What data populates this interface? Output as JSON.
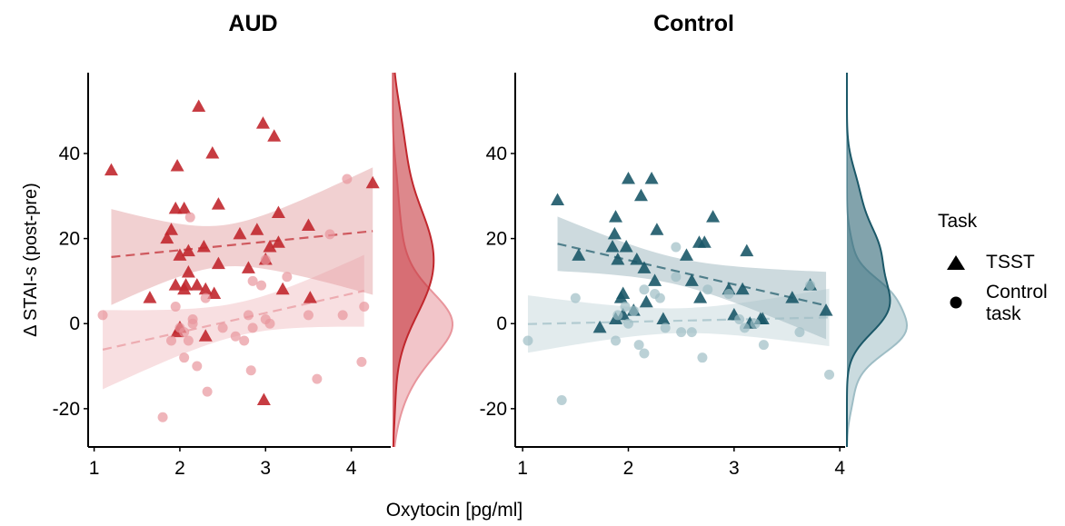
{
  "shared": {
    "xlabel": "Oxytocin [pg/ml]",
    "ylabel": "Δ STAI-s (post-pre)",
    "legend_title": "Task"
  },
  "chart_data": [
    {
      "type": "scatter",
      "title": "AUD",
      "xlim": [
        0.93,
        4.46
      ],
      "ylim": [
        -29,
        59
      ],
      "xticks": [
        1,
        2,
        3,
        4
      ],
      "yticks": [
        -20,
        0,
        20,
        40
      ],
      "series": [
        {
          "name": "TSST",
          "color": "#c1272d",
          "marker": "triangle",
          "x": [
            1.2,
            1.65,
            1.85,
            1.9,
            1.95,
            1.97,
            1.95,
            2.0,
            2.05,
            2.07,
            2.1,
            2.1,
            2.05,
            2.22,
            2.2,
            2.28,
            2.3,
            2.38,
            2.4,
            2.45,
            2.45,
            2.3,
            1.97,
            2.0,
            2.7,
            2.8,
            2.9,
            2.97,
            3.05,
            3.1,
            3.15,
            3.2,
            3.15,
            3.5,
            3.52,
            4.25,
            2.98,
            3.0
          ],
          "values": [
            36,
            6,
            20,
            22,
            27,
            37,
            9,
            16,
            27,
            9,
            12,
            17,
            8,
            51,
            9,
            18,
            8,
            40,
            7,
            14,
            28,
            -3,
            -2,
            -1,
            21,
            13,
            22,
            47,
            18,
            44,
            26,
            8,
            19,
            23,
            6,
            33,
            -18,
            15
          ]
        },
        {
          "name": "Control task",
          "color": "#e8959c",
          "marker": "circle",
          "x": [
            1.1,
            1.8,
            1.9,
            1.95,
            2.0,
            2.05,
            2.05,
            2.1,
            2.12,
            2.15,
            2.15,
            2.2,
            2.3,
            2.32,
            2.5,
            2.65,
            2.75,
            2.8,
            2.83,
            2.85,
            2.95,
            3.0,
            3.05,
            3.0,
            3.25,
            3.5,
            3.6,
            3.75,
            3.9,
            3.95,
            4.15,
            4.12,
            2.85
          ],
          "values": [
            2,
            -22,
            -4,
            4,
            -1,
            -8,
            -2,
            -4,
            25,
            1,
            0,
            -10,
            6,
            -16,
            -1,
            -3,
            -4,
            2,
            -11,
            -1,
            9,
            1,
            0,
            15,
            11,
            2,
            -13,
            21,
            2,
            34,
            4,
            -9,
            10
          ]
        }
      ]
    },
    {
      "type": "scatter",
      "title": "Control",
      "xlim": [
        0.93,
        4.05
      ],
      "ylim": [
        -29,
        59
      ],
      "xticks": [
        1,
        2,
        3,
        4
      ],
      "yticks": [
        -20,
        0,
        20,
        40
      ],
      "series": [
        {
          "name": "TSST",
          "color": "#1b5868",
          "marker": "triangle",
          "x": [
            1.33,
            1.53,
            1.73,
            1.85,
            1.87,
            1.88,
            1.9,
            1.93,
            1.95,
            1.98,
            2.0,
            2.05,
            2.08,
            2.12,
            2.15,
            2.17,
            2.22,
            2.25,
            2.27,
            2.33,
            2.55,
            2.6,
            2.67,
            2.68,
            2.72,
            2.8,
            2.95,
            3.0,
            3.08,
            3.12,
            3.15,
            3.25,
            3.27,
            3.55,
            3.72,
            3.87,
            1.88,
            1.95
          ],
          "values": [
            29,
            16,
            -1,
            18,
            21,
            25,
            15,
            6,
            7,
            18,
            34,
            3,
            15,
            30,
            13,
            5,
            34,
            10,
            22,
            1,
            16,
            10,
            19,
            6,
            19,
            25,
            8,
            2,
            8,
            17,
            0,
            1,
            1,
            6,
            9,
            3,
            1,
            2
          ]
        },
        {
          "name": "Control task",
          "color": "#9ebdc5",
          "marker": "circle",
          "x": [
            1.05,
            1.37,
            1.5,
            1.88,
            1.9,
            1.97,
            2.05,
            2.1,
            2.15,
            2.15,
            2.25,
            2.3,
            2.45,
            2.45,
            2.5,
            2.6,
            2.7,
            2.75,
            2.95,
            3.05,
            3.1,
            3.2,
            3.28,
            3.62,
            3.72,
            3.9,
            2.0,
            2.35
          ],
          "values": [
            -4,
            -18,
            6,
            -4,
            2,
            4,
            3,
            -5,
            -7,
            8,
            7,
            6,
            18,
            11,
            -2,
            -2,
            -8,
            8,
            7,
            1,
            -1,
            0,
            -5,
            -2,
            9,
            -12,
            0,
            -1
          ]
        }
      ]
    }
  ]
}
